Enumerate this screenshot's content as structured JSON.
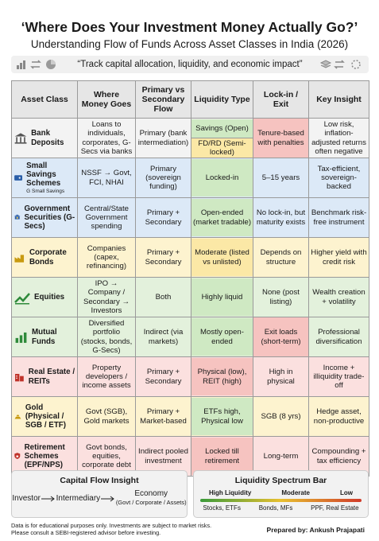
{
  "header": {
    "title": "‘Where Does Your Investment Money Actually Go?’",
    "subtitle": "Understanding Flow of Funds Across Asset Classes in India (2026)",
    "tagline": "“Track capital allocation, liquidity, and economic impact”"
  },
  "table": {
    "columns": [
      "Asset Class",
      "Where Money Goes",
      "Primary vs Secondary Flow",
      "Liquidity Type",
      "Lock-in / Exit",
      "Key Insight"
    ],
    "rows": [
      {
        "asset": "Bank Deposits",
        "cells": [
          "Loans to individuals, corporates, G-Secs via banks",
          "Primary (bank intermediation)",
          [
            "Savings (Open)",
            "FD/RD (Semi-locked)"
          ],
          "Tenure-based with penalties",
          "Low risk, inflation-adjusted returns often negative"
        ]
      },
      {
        "asset": "Small Savings Schemes",
        "note": "G Small Savings",
        "cells": [
          "NSSF → Govt, FCI, NHAI",
          "Primary (sovereign funding)",
          [
            "Locked-in"
          ],
          "5–15 years",
          "Tax-efficient, sovereign-backed"
        ]
      },
      {
        "asset": "Government Securities (G-Secs)",
        "cells": [
          "Central/State Government spending",
          "Primary + Secondary",
          [
            "Open-ended (market tradable)"
          ],
          "No lock-in, but maturity exists",
          "Benchmark risk-free instrument"
        ]
      },
      {
        "asset": "Corporate Bonds",
        "cells": [
          "Companies (capex, refinancing)",
          "Primary + Secondary",
          [
            "Moderate (listed vs unlisted)"
          ],
          "Depends on structure",
          "Higher yield with credit risk"
        ]
      },
      {
        "asset": "Equities",
        "cells": [
          "IPO → Company / Secondary → Investors",
          "Both",
          [
            "Highly liquid"
          ],
          "None (post listing)",
          "Wealth creation + volatility"
        ]
      },
      {
        "asset": "Mutual Funds",
        "cells": [
          "Diversified portfolio (stocks, bonds, G-Secs)",
          "Indirect (via markets)",
          [
            "Mostly open-ended"
          ],
          "Exit loads (short-term)",
          "Professional diversification"
        ]
      },
      {
        "asset": "Real Estate / REITs",
        "cells": [
          "Property developers / income assets",
          "Primary + Secondary",
          [
            "Physical (low), REIT (high)"
          ],
          "High in physical",
          "Income + illiquidity trade-off"
        ]
      },
      {
        "asset": "Gold (Physical / SGB / ETF)",
        "cells": [
          "Govt (SGB), Gold markets",
          "Primary + Market-based",
          [
            "ETFs high, Physical low"
          ],
          "SGB (8 yrs)",
          "Hedge asset, non-productive"
        ]
      },
      {
        "asset": "Retirement Schemes (EPF/NPS)",
        "cells": [
          "Govt bonds, equities, corporate debt",
          "Indirect pooled investment",
          [
            "Locked till retirement"
          ],
          "Long-term",
          "Compounding + tax efficiency"
        ]
      }
    ]
  },
  "capital_flow": {
    "title": "Capital Flow Insight",
    "steps": [
      "Investor",
      "Intermediary",
      "Economy"
    ],
    "note": "(Govt / Corporate / Assets)"
  },
  "liquidity_bar": {
    "title": "Liquidity Spectrum Bar",
    "levels": [
      "High Liquidity",
      "Moderate",
      "Low"
    ],
    "examples": [
      "Stocks, ETFs",
      "Bonds, MFs",
      "PPF, Real Estate"
    ]
  },
  "footer": {
    "disclaimer": [
      "Data is for educational purposes only. Investments are subject to market risks.",
      "Please consult a SEBI-registered advisor before investing."
    ],
    "credit": "Prepared by: Ankush Prajapati"
  }
}
